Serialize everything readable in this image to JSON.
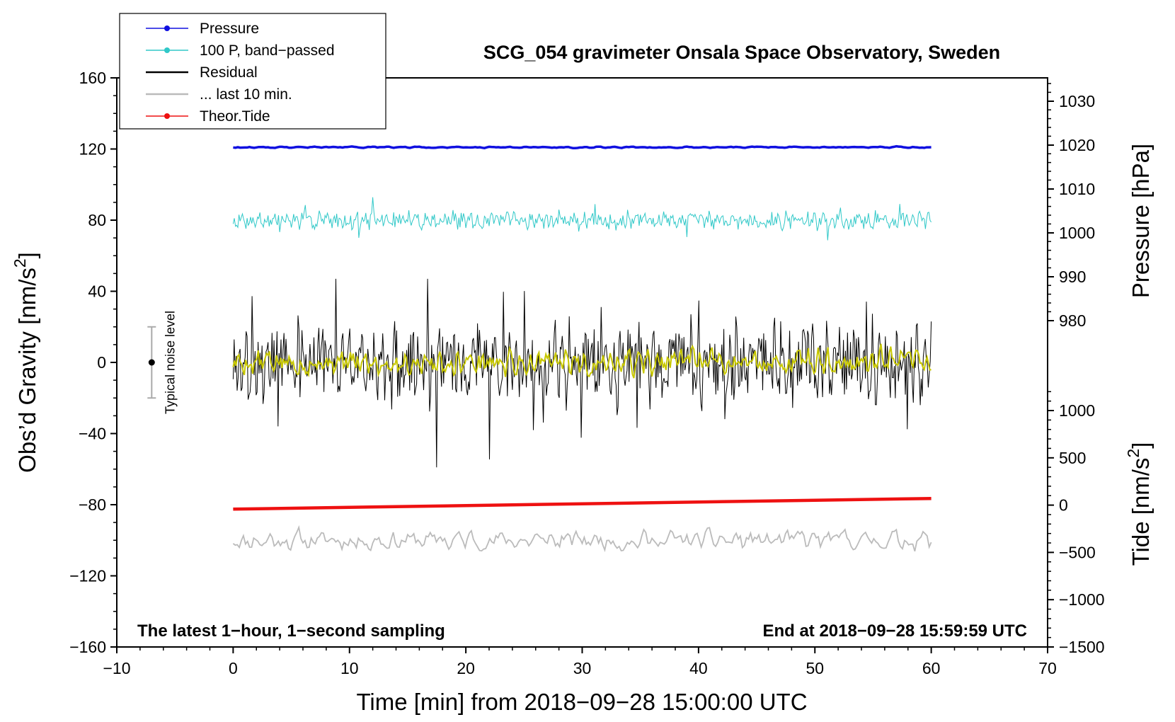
{
  "chart_data": {
    "type": "line",
    "title": "SCG_054 gravimeter Onsala Space Observatory, Sweden",
    "xlabel": "Time [min] from 2018−09−28 15:00:00 UTC",
    "ylabel_left": "Obs'd Gravity [nm/s²]",
    "ylabel_right_top": "Pressure [hPa]",
    "ylabel_right_bottom": "Tide [nm/s²]",
    "xlim": [
      -10,
      70
    ],
    "ylim": [
      -160,
      160
    ],
    "x_ticks": [
      "−10",
      "0",
      "10",
      "20",
      "30",
      "40",
      "50",
      "60",
      "70"
    ],
    "y_ticks_left": [
      "160",
      "120",
      "80",
      "40",
      "0",
      "−40",
      "−80",
      "−120",
      "−160"
    ],
    "pressure_ticks": [
      "1030",
      "1020",
      "1010",
      "1000",
      "990",
      "980"
    ],
    "tide_ticks": [
      "1000",
      "500",
      "0",
      "−500",
      "−1000",
      "−1500"
    ],
    "note_left": "The latest 1−hour, 1−second sampling",
    "note_right": "End at 2018−09−28 15:59:59 UTC",
    "noise_label": "Typical noise level",
    "noise_bar": {
      "x": -7,
      "center": 0,
      "half_range": 20
    },
    "legend": [
      {
        "label": "Pressure",
        "color": "#1010e0",
        "marker": true
      },
      {
        "label": "100 P, band−passed",
        "color": "#30c8c8",
        "marker": true
      },
      {
        "label": "Residual",
        "color": "#000000",
        "marker": false
      },
      {
        "label": "... last 10 min.",
        "color": "#bbbbbb",
        "marker": false
      },
      {
        "label": "Theor.Tide",
        "color": "#ee1111",
        "marker": true
      }
    ],
    "series": [
      {
        "name": "Pressure",
        "color": "#1010e0",
        "x_range": [
          0,
          60
        ],
        "level": 121,
        "amplitude": 0.6
      },
      {
        "name": "100 P, band−passed",
        "color": "#30c8c8",
        "x_range": [
          0,
          60
        ],
        "level": 80,
        "amplitude": 4,
        "min": 63,
        "max": 95
      },
      {
        "name": "Residual",
        "color": "#000000",
        "x_range": [
          0,
          60
        ],
        "level": 0,
        "amplitude": 18,
        "min": -59,
        "max": 47
      },
      {
        "name": "Residual smoothed",
        "color": "#c8c800",
        "x_range": [
          0,
          60
        ],
        "level": 0,
        "amplitude": 9
      },
      {
        "name": "... last 10 min.",
        "color": "#bbbbbb",
        "x_range": [
          0,
          60
        ],
        "level": -100,
        "amplitude": 8,
        "min": -121,
        "max": -76
      },
      {
        "name": "Theor.Tide",
        "color": "#ee1111",
        "x": [
          0,
          60
        ],
        "values": [
          -82.5,
          -76.5
        ]
      }
    ]
  }
}
